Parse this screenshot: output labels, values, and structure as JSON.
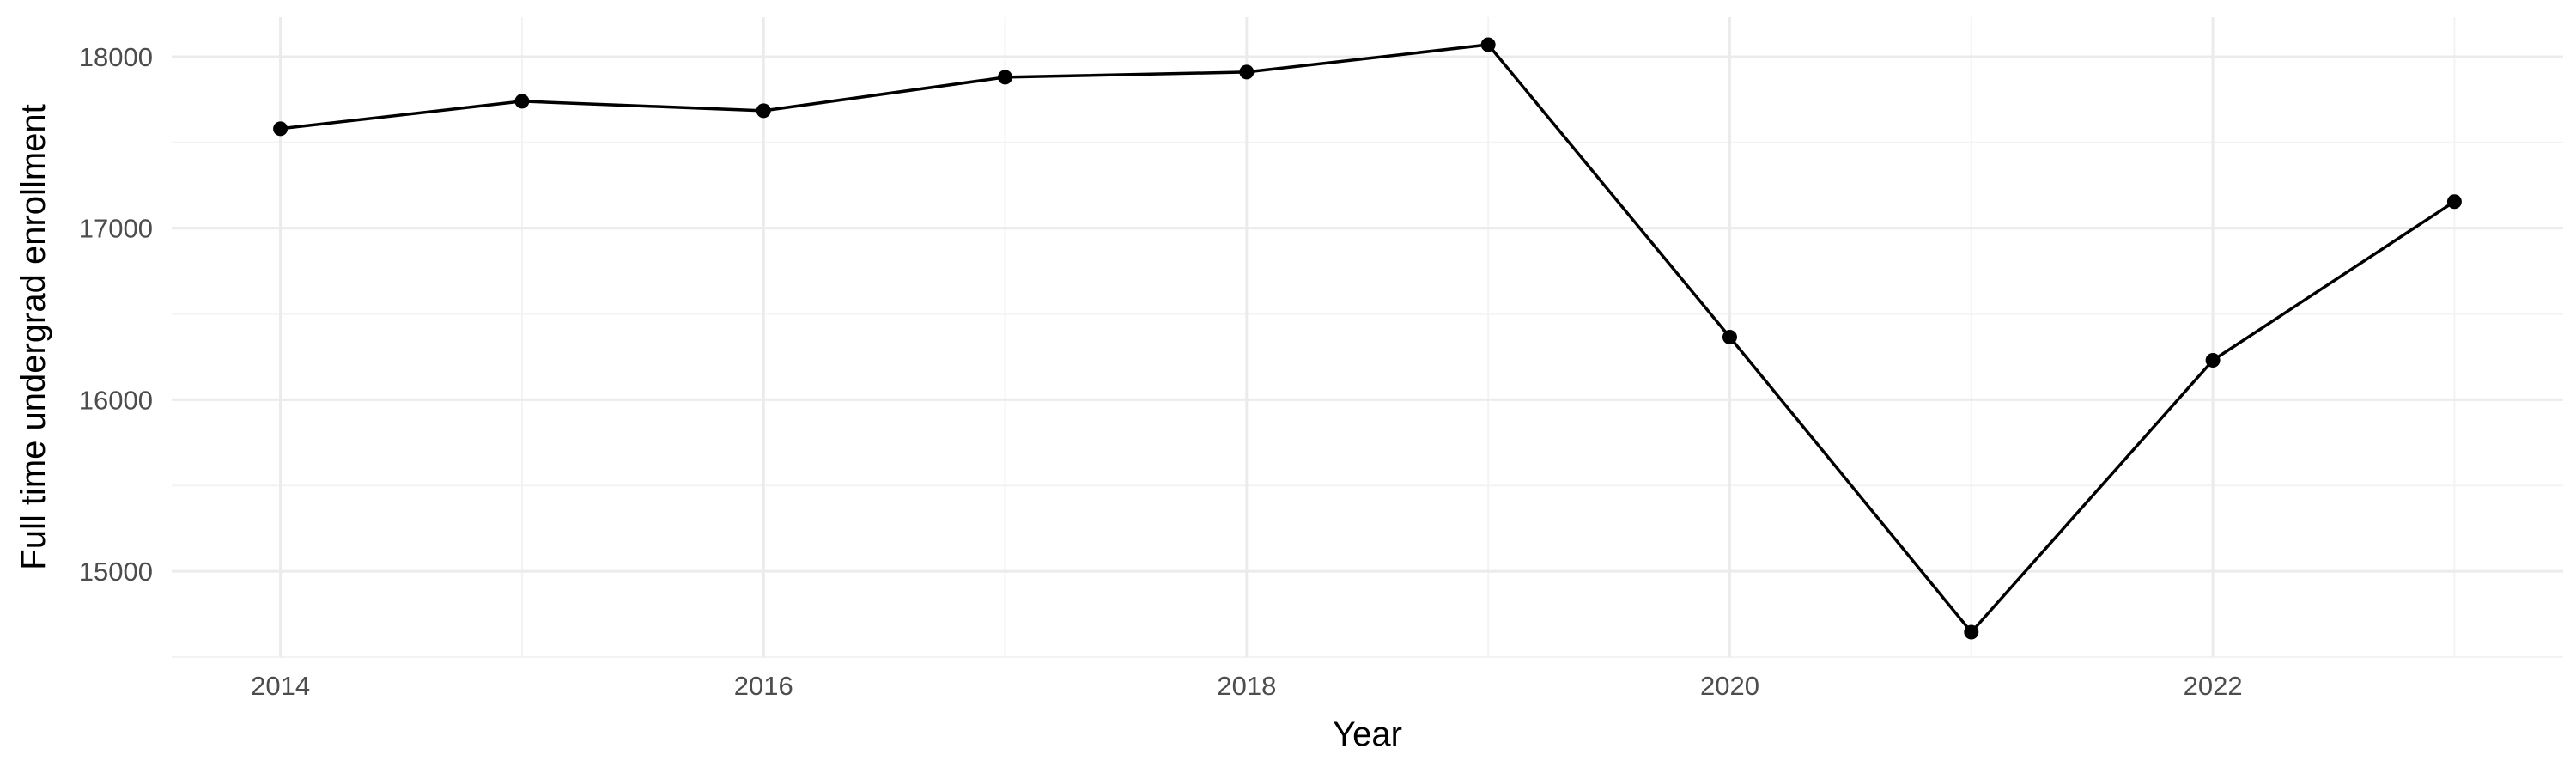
{
  "chart_data": {
    "type": "line",
    "title": "",
    "xlabel": "Year",
    "ylabel": "Full time undergrad enrollment",
    "x": [
      2014,
      2015,
      2016,
      2017,
      2018,
      2019,
      2020,
      2021,
      2022,
      2023
    ],
    "series": [
      {
        "values": [
          17580,
          17740,
          17685,
          17880,
          17910,
          18070,
          16365,
          14645,
          16230,
          17155
        ]
      }
    ],
    "xlim": [
      2013.55,
      2023.45
    ],
    "ylim": [
      14500,
      18230
    ],
    "x_ticks": [
      2014,
      2016,
      2018,
      2020,
      2022
    ],
    "x_tick_labels": [
      "2014",
      "2016",
      "2018",
      "2020",
      "2022"
    ],
    "y_ticks": [
      15000,
      16000,
      17000,
      18000
    ],
    "y_tick_labels": [
      "15000",
      "16000",
      "17000",
      "18000"
    ],
    "grid": true,
    "legend": "none",
    "colors": {
      "line": "#000000",
      "point": "#000000",
      "grid_major": "#ebebeb",
      "grid_minor": "#f3f3f3",
      "tick_text": "#4d4d4d",
      "axis_title": "#000000"
    }
  }
}
